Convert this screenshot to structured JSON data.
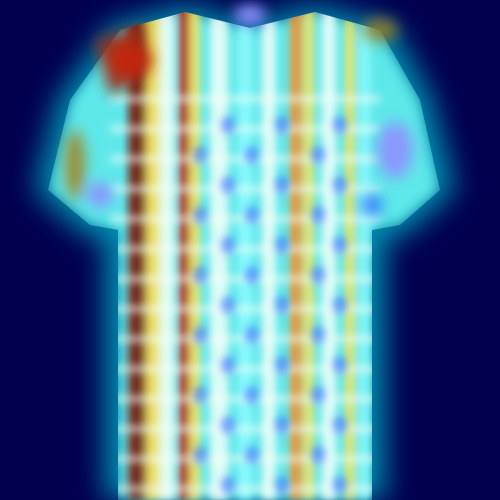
{
  "image": {
    "subject": "shirt-silhouette-heatmap",
    "colormap": "jet",
    "palette": {
      "background": "#00004f",
      "halo": "#00b4c8",
      "cyan": "#8ffcff",
      "white": "#f4fff8",
      "yellow": "#ffe45a",
      "orange": "#ff8a1f",
      "red": "#c0250c",
      "darkred": "#7d0a00",
      "blue": "#2f5bff",
      "violet": "#8f8fff",
      "olive": "#a3821e"
    }
  }
}
